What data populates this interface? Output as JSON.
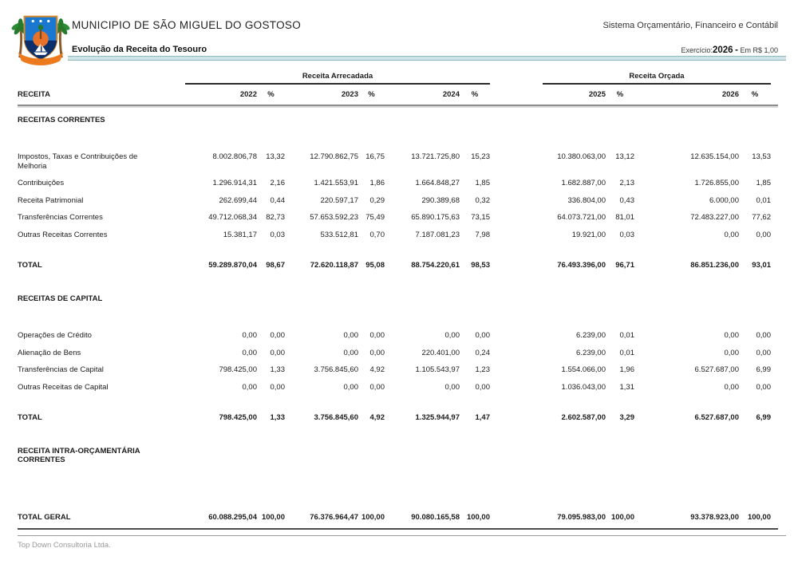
{
  "header": {
    "municipality": "MUNICIPIO DE SÃO MIGUEL DO GOSTOSO",
    "system_name": "Sistema Orçamentário, Financeiro e Contábil",
    "report_title": "Evolução da Receita do Tesouro",
    "exercise_label": "Exercício:",
    "exercise_year": "2026",
    "exercise_separator": "-",
    "exercise_unit": "Em R$ 1,00"
  },
  "table": {
    "col_label": "RECEITA",
    "group_headers": [
      "Receita Arrecadada",
      "Receita Orçada"
    ],
    "columns": [
      "2022",
      "%",
      "2023",
      "%",
      "2024",
      "%",
      "2025",
      "%",
      "2026",
      "%"
    ],
    "sections": [
      {
        "title": "RECEITAS CORRENTES",
        "rows": [
          {
            "label": "Impostos, Taxas e Contribuições de Melhoria",
            "values": [
              "8.002.806,78",
              "13,32",
              "12.790.862,75",
              "16,75",
              "13.721.725,80",
              "15,23",
              "10.380.063,00",
              "13,12",
              "12.635.154,00",
              "13,53"
            ]
          },
          {
            "label": "Contribuições",
            "values": [
              "1.296.914,31",
              "2,16",
              "1.421.553,91",
              "1,86",
              "1.664.848,27",
              "1,85",
              "1.682.887,00",
              "2,13",
              "1.726.855,00",
              "1,85"
            ]
          },
          {
            "label": "Receita Patrimonial",
            "values": [
              "262.699,44",
              "0,44",
              "220.597,17",
              "0,29",
              "290.389,68",
              "0,32",
              "336.804,00",
              "0,43",
              "6.000,00",
              "0,01"
            ]
          },
          {
            "label": "Transferências Correntes",
            "values": [
              "49.712.068,34",
              "82,73",
              "57.653.592,23",
              "75,49",
              "65.890.175,63",
              "73,15",
              "64.073.721,00",
              "81,01",
              "72.483.227,00",
              "77,62"
            ]
          },
          {
            "label": "Outras Receitas Correntes",
            "values": [
              "15.381,17",
              "0,03",
              "533.512,81",
              "0,70",
              "7.187.081,23",
              "7,98",
              "19.921,00",
              "0,03",
              "0,00",
              "0,00"
            ]
          }
        ],
        "total_label": "TOTAL",
        "total": [
          "59.289.870,04",
          "98,67",
          "72.620.118,87",
          "95,08",
          "88.754.220,61",
          "98,53",
          "76.493.396,00",
          "96,71",
          "86.851.236,00",
          "93,01"
        ]
      },
      {
        "title": "RECEITAS DE CAPITAL",
        "rows": [
          {
            "label": "Operações de Crédito",
            "values": [
              "0,00",
              "0,00",
              "0,00",
              "0,00",
              "0,00",
              "0,00",
              "6.239,00",
              "0,01",
              "0,00",
              "0,00"
            ]
          },
          {
            "label": "Alienação de Bens",
            "values": [
              "0,00",
              "0,00",
              "0,00",
              "0,00",
              "220.401,00",
              "0,24",
              "6.239,00",
              "0,01",
              "0,00",
              "0,00"
            ]
          },
          {
            "label": "Transferências de Capital",
            "values": [
              "798.425,00",
              "1,33",
              "3.756.845,60",
              "4,92",
              "1.105.543,97",
              "1,23",
              "1.554.066,00",
              "1,96",
              "6.527.687,00",
              "6,99"
            ]
          },
          {
            "label": "Outras Receitas de Capital",
            "values": [
              "0,00",
              "0,00",
              "0,00",
              "0,00",
              "0,00",
              "0,00",
              "1.036.043,00",
              "1,31",
              "0,00",
              "0,00"
            ]
          }
        ],
        "total_label": "TOTAL",
        "total": [
          "798.425,00",
          "1,33",
          "3.756.845,60",
          "4,92",
          "1.325.944,97",
          "1,47",
          "2.602.587,00",
          "3,29",
          "6.527.687,00",
          "6,99"
        ]
      },
      {
        "title": "RECEITA INTRA-ORÇAMENTÁRIA\nCORRENTES",
        "rows": [],
        "total_label": null,
        "total": null
      }
    ],
    "grand_total_label": "TOTAL GERAL",
    "grand_total": [
      "60.088.295,04",
      "100,00",
      "76.376.964,47",
      "100,00",
      "90.080.165,58",
      "100,00",
      "79.095.983,00",
      "100,00",
      "93.378.923,00",
      "100,00"
    ]
  },
  "footer": {
    "text": "Top Down Consultoria Ltda."
  },
  "colors": {
    "divider_fill": "#cfe4e7",
    "divider_border": "#8fb9bf",
    "group_rule": "#2a2a2a",
    "header_rule": "#8f8f8f",
    "grand_total_rule": "#4c4c4c",
    "footer_text": "#9a9a9a",
    "logo_blue": "#1b78d0",
    "logo_navy": "#0b2f6b",
    "logo_orange": "#ee7a1e",
    "logo_green": "#2d8c33"
  }
}
